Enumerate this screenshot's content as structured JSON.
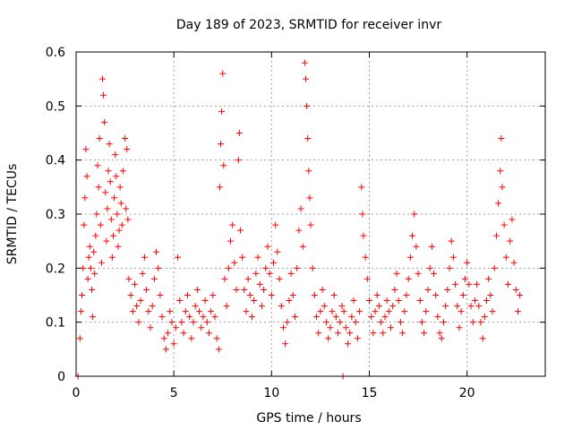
{
  "chart_data": {
    "type": "scatter",
    "title": "Day 189 of 2023, SRMTID for receiver invr",
    "xlabel": "GPS time / hours",
    "ylabel": "SRMTID / TECUs",
    "xlim": [
      0,
      24
    ],
    "ylim": [
      0,
      0.6
    ],
    "xticks": [
      0,
      5,
      10,
      15,
      20
    ],
    "xtick_labels": [
      "0",
      "5",
      "10",
      "15",
      "20"
    ],
    "yticks": [
      0,
      0.1,
      0.2,
      0.3,
      0.4,
      0.5,
      0.6
    ],
    "ytick_labels": [
      "0",
      "0.1",
      "0.2",
      "0.3",
      "0.4",
      "0.5",
      "0.6"
    ],
    "grid": true,
    "marker": "+",
    "color": "#ff0000",
    "series": [
      {
        "name": "SRMTID",
        "points": [
          [
            0.1,
            0.0
          ],
          [
            0.2,
            0.07
          ],
          [
            0.25,
            0.12
          ],
          [
            0.3,
            0.15
          ],
          [
            0.35,
            0.2
          ],
          [
            0.4,
            0.28
          ],
          [
            0.45,
            0.33
          ],
          [
            0.5,
            0.42
          ],
          [
            0.55,
            0.37
          ],
          [
            0.6,
            0.18
          ],
          [
            0.65,
            0.22
          ],
          [
            0.7,
            0.24
          ],
          [
            0.75,
            0.2
          ],
          [
            0.8,
            0.16
          ],
          [
            0.85,
            0.11
          ],
          [
            0.9,
            0.23
          ],
          [
            0.95,
            0.19
          ],
          [
            1.0,
            0.26
          ],
          [
            1.05,
            0.3
          ],
          [
            1.1,
            0.39
          ],
          [
            1.15,
            0.35
          ],
          [
            1.2,
            0.44
          ],
          [
            1.25,
            0.28
          ],
          [
            1.3,
            0.21
          ],
          [
            1.35,
            0.55
          ],
          [
            1.4,
            0.52
          ],
          [
            1.45,
            0.47
          ],
          [
            1.5,
            0.34
          ],
          [
            1.55,
            0.25
          ],
          [
            1.6,
            0.31
          ],
          [
            1.65,
            0.38
          ],
          [
            1.7,
            0.43
          ],
          [
            1.75,
            0.36
          ],
          [
            1.8,
            0.29
          ],
          [
            1.85,
            0.22
          ],
          [
            1.9,
            0.26
          ],
          [
            1.95,
            0.33
          ],
          [
            2.0,
            0.41
          ],
          [
            2.05,
            0.37
          ],
          [
            2.1,
            0.3
          ],
          [
            2.15,
            0.24
          ],
          [
            2.2,
            0.27
          ],
          [
            2.25,
            0.35
          ],
          [
            2.3,
            0.32
          ],
          [
            2.35,
            0.28
          ],
          [
            2.4,
            0.38
          ],
          [
            2.5,
            0.44
          ],
          [
            2.55,
            0.31
          ],
          [
            2.6,
            0.42
          ],
          [
            2.65,
            0.29
          ],
          [
            2.7,
            0.18
          ],
          [
            2.8,
            0.15
          ],
          [
            2.9,
            0.12
          ],
          [
            3.0,
            0.17
          ],
          [
            3.1,
            0.13
          ],
          [
            3.2,
            0.1
          ],
          [
            3.3,
            0.14
          ],
          [
            3.4,
            0.19
          ],
          [
            3.5,
            0.22
          ],
          [
            3.6,
            0.16
          ],
          [
            3.7,
            0.12
          ],
          [
            3.8,
            0.09
          ],
          [
            3.9,
            0.13
          ],
          [
            4.0,
            0.18
          ],
          [
            4.1,
            0.23
          ],
          [
            4.2,
            0.2
          ],
          [
            4.3,
            0.15
          ],
          [
            4.4,
            0.11
          ],
          [
            4.5,
            0.07
          ],
          [
            4.6,
            0.05
          ],
          [
            4.7,
            0.08
          ],
          [
            4.8,
            0.12
          ],
          [
            4.9,
            0.1
          ],
          [
            5.0,
            0.06
          ],
          [
            5.1,
            0.09
          ],
          [
            5.2,
            0.22
          ],
          [
            5.3,
            0.14
          ],
          [
            5.4,
            0.1
          ],
          [
            5.5,
            0.08
          ],
          [
            5.6,
            0.12
          ],
          [
            5.7,
            0.15
          ],
          [
            5.8,
            0.11
          ],
          [
            5.9,
            0.07
          ],
          [
            6.0,
            0.1
          ],
          [
            6.1,
            0.13
          ],
          [
            6.2,
            0.16
          ],
          [
            6.3,
            0.12
          ],
          [
            6.4,
            0.09
          ],
          [
            6.5,
            0.11
          ],
          [
            6.6,
            0.14
          ],
          [
            6.7,
            0.1
          ],
          [
            6.8,
            0.08
          ],
          [
            6.9,
            0.12
          ],
          [
            7.0,
            0.15
          ],
          [
            7.1,
            0.11
          ],
          [
            7.2,
            0.07
          ],
          [
            7.3,
            0.05
          ],
          [
            7.35,
            0.35
          ],
          [
            7.4,
            0.43
          ],
          [
            7.45,
            0.49
          ],
          [
            7.5,
            0.56
          ],
          [
            7.55,
            0.39
          ],
          [
            7.6,
            0.18
          ],
          [
            7.7,
            0.13
          ],
          [
            7.8,
            0.2
          ],
          [
            7.9,
            0.25
          ],
          [
            8.0,
            0.28
          ],
          [
            8.1,
            0.21
          ],
          [
            8.2,
            0.16
          ],
          [
            8.3,
            0.4
          ],
          [
            8.35,
            0.45
          ],
          [
            8.4,
            0.27
          ],
          [
            8.5,
            0.22
          ],
          [
            8.6,
            0.16
          ],
          [
            8.7,
            0.12
          ],
          [
            8.8,
            0.18
          ],
          [
            8.9,
            0.15
          ],
          [
            9.0,
            0.11
          ],
          [
            9.1,
            0.14
          ],
          [
            9.2,
            0.19
          ],
          [
            9.3,
            0.22
          ],
          [
            9.4,
            0.17
          ],
          [
            9.5,
            0.13
          ],
          [
            9.6,
            0.16
          ],
          [
            9.7,
            0.2
          ],
          [
            9.8,
            0.24
          ],
          [
            9.9,
            0.19
          ],
          [
            10.0,
            0.15
          ],
          [
            10.1,
            0.21
          ],
          [
            10.2,
            0.28
          ],
          [
            10.3,
            0.23
          ],
          [
            10.4,
            0.18
          ],
          [
            10.5,
            0.13
          ],
          [
            10.6,
            0.09
          ],
          [
            10.7,
            0.06
          ],
          [
            10.8,
            0.1
          ],
          [
            10.9,
            0.14
          ],
          [
            11.0,
            0.19
          ],
          [
            11.1,
            0.15
          ],
          [
            11.2,
            0.11
          ],
          [
            11.3,
            0.2
          ],
          [
            11.4,
            0.27
          ],
          [
            11.5,
            0.31
          ],
          [
            11.6,
            0.24
          ],
          [
            11.7,
            0.58
          ],
          [
            11.75,
            0.55
          ],
          [
            11.8,
            0.5
          ],
          [
            11.85,
            0.44
          ],
          [
            11.9,
            0.38
          ],
          [
            11.95,
            0.33
          ],
          [
            12.0,
            0.28
          ],
          [
            12.1,
            0.2
          ],
          [
            12.2,
            0.15
          ],
          [
            12.3,
            0.11
          ],
          [
            12.4,
            0.08
          ],
          [
            12.5,
            0.12
          ],
          [
            12.6,
            0.16
          ],
          [
            12.7,
            0.13
          ],
          [
            12.8,
            0.1
          ],
          [
            12.9,
            0.07
          ],
          [
            13.0,
            0.09
          ],
          [
            13.1,
            0.12
          ],
          [
            13.2,
            0.15
          ],
          [
            13.3,
            0.11
          ],
          [
            13.4,
            0.08
          ],
          [
            13.5,
            0.1
          ],
          [
            13.6,
            0.13
          ],
          [
            13.65,
            0.0
          ],
          [
            13.7,
            0.12
          ],
          [
            13.8,
            0.09
          ],
          [
            13.9,
            0.06
          ],
          [
            14.0,
            0.08
          ],
          [
            14.1,
            0.11
          ],
          [
            14.2,
            0.14
          ],
          [
            14.3,
            0.1
          ],
          [
            14.4,
            0.07
          ],
          [
            14.5,
            0.12
          ],
          [
            14.6,
            0.35
          ],
          [
            14.65,
            0.3
          ],
          [
            14.7,
            0.26
          ],
          [
            14.8,
            0.22
          ],
          [
            14.9,
            0.18
          ],
          [
            15.0,
            0.14
          ],
          [
            15.1,
            0.11
          ],
          [
            15.2,
            0.08
          ],
          [
            15.3,
            0.12
          ],
          [
            15.4,
            0.15
          ],
          [
            15.5,
            0.13
          ],
          [
            15.6,
            0.1
          ],
          [
            15.7,
            0.08
          ],
          [
            15.8,
            0.11
          ],
          [
            15.9,
            0.14
          ],
          [
            16.0,
            0.12
          ],
          [
            16.1,
            0.09
          ],
          [
            16.2,
            0.13
          ],
          [
            16.3,
            0.16
          ],
          [
            16.4,
            0.19
          ],
          [
            16.5,
            0.14
          ],
          [
            16.6,
            0.1
          ],
          [
            16.7,
            0.08
          ],
          [
            16.8,
            0.12
          ],
          [
            16.9,
            0.15
          ],
          [
            17.0,
            0.18
          ],
          [
            17.1,
            0.22
          ],
          [
            17.2,
            0.26
          ],
          [
            17.3,
            0.3
          ],
          [
            17.4,
            0.24
          ],
          [
            17.5,
            0.19
          ],
          [
            17.6,
            0.14
          ],
          [
            17.7,
            0.1
          ],
          [
            17.8,
            0.08
          ],
          [
            17.9,
            0.12
          ],
          [
            18.0,
            0.16
          ],
          [
            18.1,
            0.2
          ],
          [
            18.2,
            0.24
          ],
          [
            18.3,
            0.19
          ],
          [
            18.4,
            0.15
          ],
          [
            18.5,
            0.11
          ],
          [
            18.6,
            0.08
          ],
          [
            18.7,
            0.07
          ],
          [
            18.8,
            0.1
          ],
          [
            18.9,
            0.13
          ],
          [
            19.0,
            0.16
          ],
          [
            19.1,
            0.2
          ],
          [
            19.2,
            0.25
          ],
          [
            19.3,
            0.22
          ],
          [
            19.4,
            0.17
          ],
          [
            19.5,
            0.13
          ],
          [
            19.6,
            0.09
          ],
          [
            19.7,
            0.12
          ],
          [
            19.8,
            0.15
          ],
          [
            19.9,
            0.18
          ],
          [
            20.0,
            0.21
          ],
          [
            20.1,
            0.17
          ],
          [
            20.2,
            0.13
          ],
          [
            20.3,
            0.1
          ],
          [
            20.4,
            0.14
          ],
          [
            20.5,
            0.17
          ],
          [
            20.6,
            0.13
          ],
          [
            20.7,
            0.1
          ],
          [
            20.8,
            0.07
          ],
          [
            20.9,
            0.11
          ],
          [
            21.0,
            0.14
          ],
          [
            21.1,
            0.18
          ],
          [
            21.2,
            0.15
          ],
          [
            21.3,
            0.12
          ],
          [
            21.4,
            0.2
          ],
          [
            21.5,
            0.26
          ],
          [
            21.6,
            0.32
          ],
          [
            21.7,
            0.38
          ],
          [
            21.75,
            0.44
          ],
          [
            21.8,
            0.35
          ],
          [
            21.9,
            0.28
          ],
          [
            22.0,
            0.22
          ],
          [
            22.1,
            0.17
          ],
          [
            22.2,
            0.25
          ],
          [
            22.3,
            0.29
          ],
          [
            22.4,
            0.21
          ],
          [
            22.5,
            0.16
          ],
          [
            22.6,
            0.12
          ],
          [
            22.7,
            0.15
          ]
        ]
      }
    ]
  }
}
